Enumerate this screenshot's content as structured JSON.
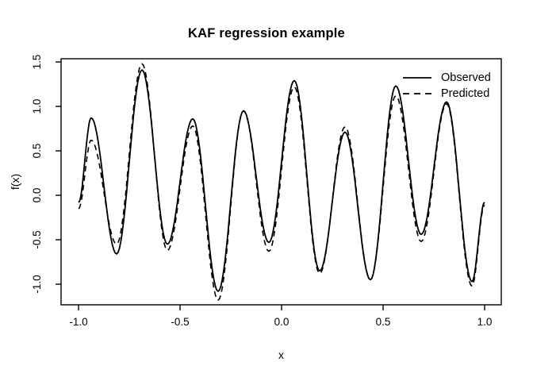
{
  "figure": {
    "background_color": "#ffffff",
    "foreground_color": "#000000"
  },
  "chart_data": {
    "type": "line",
    "title": "KAF regression example",
    "xlabel": "x",
    "ylabel": "f(x)",
    "xlim": [
      -1.086,
      1.082
    ],
    "ylim": [
      -1.232,
      1.536
    ],
    "x_ticks": [
      -1.0,
      -0.5,
      0.0,
      0.5,
      1.0
    ],
    "x_tick_labels": [
      "-1.0",
      "-0.5",
      "0.0",
      "0.5",
      "1.0"
    ],
    "y_ticks": [
      -1.0,
      -0.5,
      0.0,
      0.5,
      1.0,
      1.5
    ],
    "y_tick_labels": [
      "-1.0",
      "-0.5",
      "0.0",
      "0.5",
      "1.0",
      "1.5"
    ],
    "grid": false,
    "frame_box": true,
    "legend_position": "topright",
    "legend": {
      "entries": [
        {
          "label": "Observed",
          "linetype": "solid"
        },
        {
          "label": "Predicted",
          "linetype": "dashed"
        }
      ]
    },
    "interpolation": "cosine-through-extrema",
    "series": [
      {
        "name": "Observed",
        "linetype": "solid",
        "color": "#000000",
        "points": [
          [
            -1.0,
            -0.08
          ],
          [
            -0.9375,
            0.87
          ],
          [
            -0.8125,
            -0.66
          ],
          [
            -0.6875,
            1.41
          ],
          [
            -0.5625,
            -0.55
          ],
          [
            -0.4375,
            0.86
          ],
          [
            -0.3125,
            -1.08
          ],
          [
            -0.1875,
            0.95
          ],
          [
            -0.0625,
            -0.53
          ],
          [
            0.0625,
            1.29
          ],
          [
            0.1875,
            -0.85
          ],
          [
            0.3125,
            0.71
          ],
          [
            0.4375,
            -0.95
          ],
          [
            0.5625,
            1.23
          ],
          [
            0.6875,
            -0.44
          ],
          [
            0.8125,
            1.05
          ],
          [
            0.9375,
            -0.97
          ],
          [
            1.0,
            -0.08
          ]
        ]
      },
      {
        "name": "Predicted",
        "linetype": "dashed",
        "color": "#000000",
        "points": [
          [
            -1.0,
            -0.15
          ],
          [
            -0.9375,
            0.62
          ],
          [
            -0.8125,
            -0.55
          ],
          [
            -0.6875,
            1.48
          ],
          [
            -0.5625,
            -0.62
          ],
          [
            -0.4375,
            0.78
          ],
          [
            -0.3125,
            -1.18
          ],
          [
            -0.1875,
            0.95
          ],
          [
            -0.0625,
            -0.63
          ],
          [
            0.0625,
            1.22
          ],
          [
            0.1875,
            -0.88
          ],
          [
            0.3125,
            0.77
          ],
          [
            0.4375,
            -0.95
          ],
          [
            0.5625,
            1.12
          ],
          [
            0.6875,
            -0.52
          ],
          [
            0.8125,
            1.03
          ],
          [
            0.9375,
            -1.02
          ],
          [
            1.0,
            -0.11
          ]
        ]
      }
    ]
  }
}
